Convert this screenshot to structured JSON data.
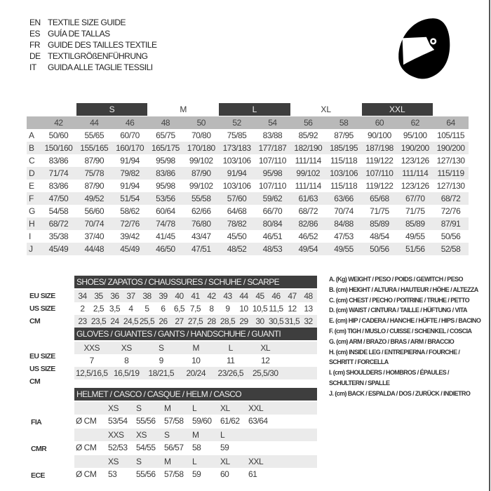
{
  "titles": [
    {
      "lang": "EN",
      "text": "TEXTILE SIZE GUIDE"
    },
    {
      "lang": "ES",
      "text": "GUÍA DE TALLAS"
    },
    {
      "lang": "FR",
      "text": "GUIDE DES TAILLES TEXTILE"
    },
    {
      "lang": "DE",
      "text": "TEXTILGRÖßENFÜHRUNG"
    },
    {
      "lang": "IT",
      "text": "GUIDA ALLE TAGLIE TESSILI"
    }
  ],
  "icon": "helmet-icon",
  "colors": {
    "dark_header": "#3e3e3e",
    "number_header": "#b9b9b9",
    "alt_row": "#ebebeb"
  },
  "textile": {
    "size_labels": [
      {
        "label": "S",
        "dark": true
      },
      {
        "label": "M",
        "dark": false
      },
      {
        "label": "L",
        "dark": true
      },
      {
        "label": "XL",
        "dark": false
      },
      {
        "label": "XXL",
        "dark": true
      }
    ],
    "sizes": [
      "42",
      "44",
      "46",
      "48",
      "50",
      "52",
      "54",
      "56",
      "58",
      "60",
      "62",
      "64"
    ],
    "rows": [
      {
        "letter": "A",
        "values": [
          "50/60",
          "55/65",
          "60/70",
          "65/75",
          "70/80",
          "75/85",
          "83/88",
          "85/92",
          "87/95",
          "90/100",
          "95/100",
          "105/115"
        ]
      },
      {
        "letter": "B",
        "values": [
          "150/160",
          "155/165",
          "160/170",
          "165/175",
          "170/180",
          "173/183",
          "177/187",
          "182/190",
          "185/195",
          "187/198",
          "190/200",
          "190/200"
        ]
      },
      {
        "letter": "C",
        "values": [
          "83/86",
          "87/90",
          "91/94",
          "95/98",
          "99/102",
          "103/106",
          "107/110",
          "111/114",
          "115/118",
          "119/122",
          "123/126",
          "127/130"
        ]
      },
      {
        "letter": "D",
        "values": [
          "71/74",
          "75/78",
          "79/82",
          "83/86",
          "87/90",
          "91/94",
          "95/98",
          "99/102",
          "103/106",
          "107/110",
          "111/114",
          "115/119"
        ]
      },
      {
        "letter": "E",
        "values": [
          "83/86",
          "87/90",
          "91/94",
          "95/98",
          "99/102",
          "103/106",
          "107/110",
          "111/114",
          "115/118",
          "119/122",
          "123/126",
          "127/130"
        ]
      },
      {
        "letter": "F",
        "values": [
          "47/50",
          "49/52",
          "51/54",
          "53/56",
          "55/58",
          "57/60",
          "59/62",
          "61/63",
          "63/66",
          "65/68",
          "67/70",
          "68/72"
        ]
      },
      {
        "letter": "G",
        "values": [
          "54/58",
          "56/60",
          "58/62",
          "60/64",
          "62/66",
          "64/68",
          "66/70",
          "68/72",
          "70/74",
          "71/75",
          "71/75",
          "72/76"
        ]
      },
      {
        "letter": "H",
        "values": [
          "68/72",
          "70/74",
          "72/76",
          "74/78",
          "76/80",
          "78/82",
          "80/84",
          "82/86",
          "84/88",
          "85/89",
          "85/89",
          "87/91"
        ]
      },
      {
        "letter": "I",
        "values": [
          "35/38",
          "37/40",
          "39/42",
          "41/45",
          "43/47",
          "45/50",
          "46/51",
          "46/52",
          "47/53",
          "48/54",
          "49/55",
          "50/56"
        ]
      },
      {
        "letter": "J",
        "values": [
          "45/49",
          "44/48",
          "45/49",
          "46/50",
          "47/51",
          "48/52",
          "48/53",
          "49/54",
          "49/55",
          "50/56",
          "51/56",
          "52/58"
        ]
      }
    ]
  },
  "shoes": {
    "title": "SHOES/ ZAPATOS / CHAUSSURES / SCHUHE / SCARPE",
    "rows": [
      {
        "label": "EU SIZE",
        "values": [
          "34",
          "35",
          "36",
          "37",
          "38",
          "39",
          "40",
          "41",
          "42",
          "43",
          "44",
          "45",
          "46",
          "47",
          "48"
        ]
      },
      {
        "label": "US SIZE",
        "values": [
          "2",
          "2,5",
          "3,5",
          "4",
          "5",
          "6",
          "6,5",
          "7,5",
          "8",
          "9",
          "10",
          "10,5",
          "11,5",
          "12",
          "13"
        ]
      },
      {
        "label": "CM",
        "values": [
          "23",
          "23,5",
          "24",
          "24,5",
          "25,5",
          "26",
          "27",
          "27,5",
          "28",
          "28,5",
          "29",
          "30",
          "30,5",
          "31,5",
          "32"
        ]
      }
    ]
  },
  "gloves": {
    "title": "GLOVES / GUANTES / GANTS / HANDSCHUHE / GUANTI",
    "rows": [
      {
        "label": "EU SIZE",
        "values": [
          "XXS",
          "XS",
          "S",
          "M",
          "L",
          "XL"
        ]
      },
      {
        "label": "US SIZE",
        "values": [
          "7",
          "8",
          "9",
          "10",
          "11",
          "12"
        ]
      },
      {
        "label": "CM",
        "values": [
          "12,5/16,5",
          "16,5/19",
          "18/21,5",
          "20/24",
          "23/26,5",
          "25,5/30"
        ]
      }
    ]
  },
  "helmet": {
    "title": "HELMET / CASCO / CASQUE / HELM / CASCO",
    "unit": "Ø CM",
    "groups": [
      {
        "label": "FIA",
        "sizes": [
          "XS",
          "S",
          "M",
          "L",
          "XL",
          "XXL"
        ],
        "values": [
          "53/54",
          "55/56",
          "57/58",
          "59/60",
          "61/62",
          "63/64"
        ]
      },
      {
        "label": "CMR",
        "sizes": [
          "XXS",
          "XS",
          "S",
          "M",
          "L"
        ],
        "values": [
          "52/53",
          "54/55",
          "56/57",
          "58",
          "59"
        ]
      },
      {
        "label": "ECE",
        "sizes": [
          "XS",
          "S",
          "M",
          "L",
          "XL",
          "XXL"
        ],
        "values": [
          "53",
          "55/56",
          "57/58",
          "59",
          "60",
          "61"
        ]
      }
    ]
  },
  "legend": [
    "A. (Kg) WEIGHT / PESO / POIDS / GEWITCH / PESO",
    "B. (cm) HEIGHT / ALTURA / HAUTEUR / HÖHE / ALTEZZA",
    "C. (cm) CHEST / PECHO / POITRINE / TRUHE / PETTO",
    "D. (cm) WAIST / CINTURA / TAILLE / HÜFTUNG / VITA",
    "E. (cm) HIP / CADERA / HANCHE / HÜFTE / HIPS /  BACINO",
    "F.  (cm) TIGH / MUSLO / CUISSE / SCHENKEL / COSCIA",
    "G. (cm) ARM  / BRAZO / BRAS / ARM / BRACCIO",
    "H. (cm) INSIDE LEG / ENTREPIERNA / FOURCHE /",
    "SCHRITT / FORCELLA",
    "I.  (cm) SHOULDERS / HOMBROS / ÉPAULES /",
    "SCHULTERN / SPALLE",
    "J. (cm) BACK / ESPALDA / DOS / ZURÜCK / INDIETRO"
  ]
}
